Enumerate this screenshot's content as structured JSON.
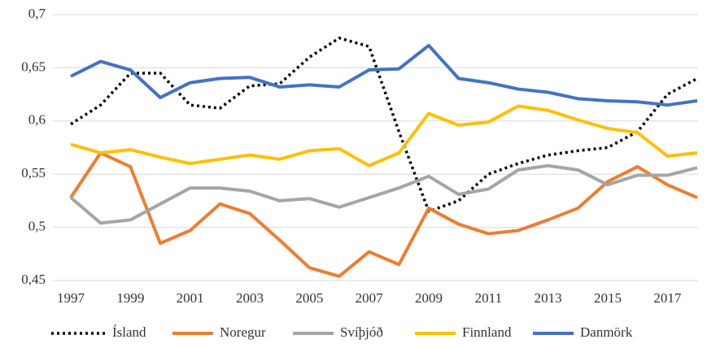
{
  "chart_data": {
    "type": "line",
    "x": [
      1997,
      1998,
      1999,
      2000,
      2001,
      2002,
      2003,
      2004,
      2005,
      2006,
      2007,
      2008,
      2009,
      2010,
      2011,
      2012,
      2013,
      2014,
      2015,
      2016,
      2017,
      2018
    ],
    "xlim": [
      1997,
      2018
    ],
    "xticks": [
      1997,
      1999,
      2001,
      2003,
      2005,
      2007,
      2009,
      2011,
      2013,
      2015,
      2017
    ],
    "ylim": [
      0.45,
      0.7
    ],
    "yticks": [
      {
        "value": 0.45,
        "label": "0,45"
      },
      {
        "value": 0.5,
        "label": "0,5"
      },
      {
        "value": 0.55,
        "label": "0,55"
      },
      {
        "value": 0.6,
        "label": "0,6"
      },
      {
        "value": 0.65,
        "label": "0,65"
      },
      {
        "value": 0.7,
        "label": "0,7"
      }
    ],
    "grid": true,
    "legend": "bottom",
    "series": [
      {
        "name": "Ísland",
        "color": "#000000",
        "style": "dotted",
        "values": [
          0.597,
          0.615,
          0.645,
          0.645,
          0.615,
          0.612,
          0.633,
          0.635,
          0.66,
          0.678,
          0.67,
          0.59,
          0.515,
          0.525,
          0.55,
          0.56,
          0.568,
          0.572,
          0.575,
          0.59,
          0.625,
          0.64
        ]
      },
      {
        "name": "Noregur",
        "color": "#ed7d31",
        "values": [
          0.528,
          0.57,
          0.557,
          0.485,
          0.497,
          0.522,
          0.513,
          0.488,
          0.462,
          0.454,
          0.477,
          0.465,
          0.518,
          0.503,
          0.494,
          0.497,
          0.507,
          0.518,
          0.543,
          0.557,
          0.54,
          0.528
        ]
      },
      {
        "name": "Svíþjóð",
        "color": "#a5a5a5",
        "values": [
          0.528,
          0.504,
          0.507,
          0.522,
          0.537,
          0.537,
          0.534,
          0.525,
          0.527,
          0.519,
          0.528,
          0.537,
          0.548,
          0.531,
          0.536,
          0.554,
          0.558,
          0.554,
          0.54,
          0.549,
          0.549,
          0.556
        ]
      },
      {
        "name": "Finnland",
        "color": "#ffc000",
        "values": [
          0.578,
          0.57,
          0.573,
          0.566,
          0.56,
          0.564,
          0.568,
          0.564,
          0.572,
          0.574,
          0.558,
          0.57,
          0.607,
          0.596,
          0.599,
          0.614,
          0.61,
          0.601,
          0.593,
          0.589,
          0.567,
          0.57
        ]
      },
      {
        "name": "Danmörk",
        "color": "#4472c4",
        "values": [
          0.642,
          0.656,
          0.648,
          0.622,
          0.636,
          0.64,
          0.641,
          0.632,
          0.634,
          0.632,
          0.648,
          0.649,
          0.671,
          0.64,
          0.636,
          0.63,
          0.627,
          0.621,
          0.619,
          0.618,
          0.615,
          0.619
        ]
      }
    ]
  }
}
